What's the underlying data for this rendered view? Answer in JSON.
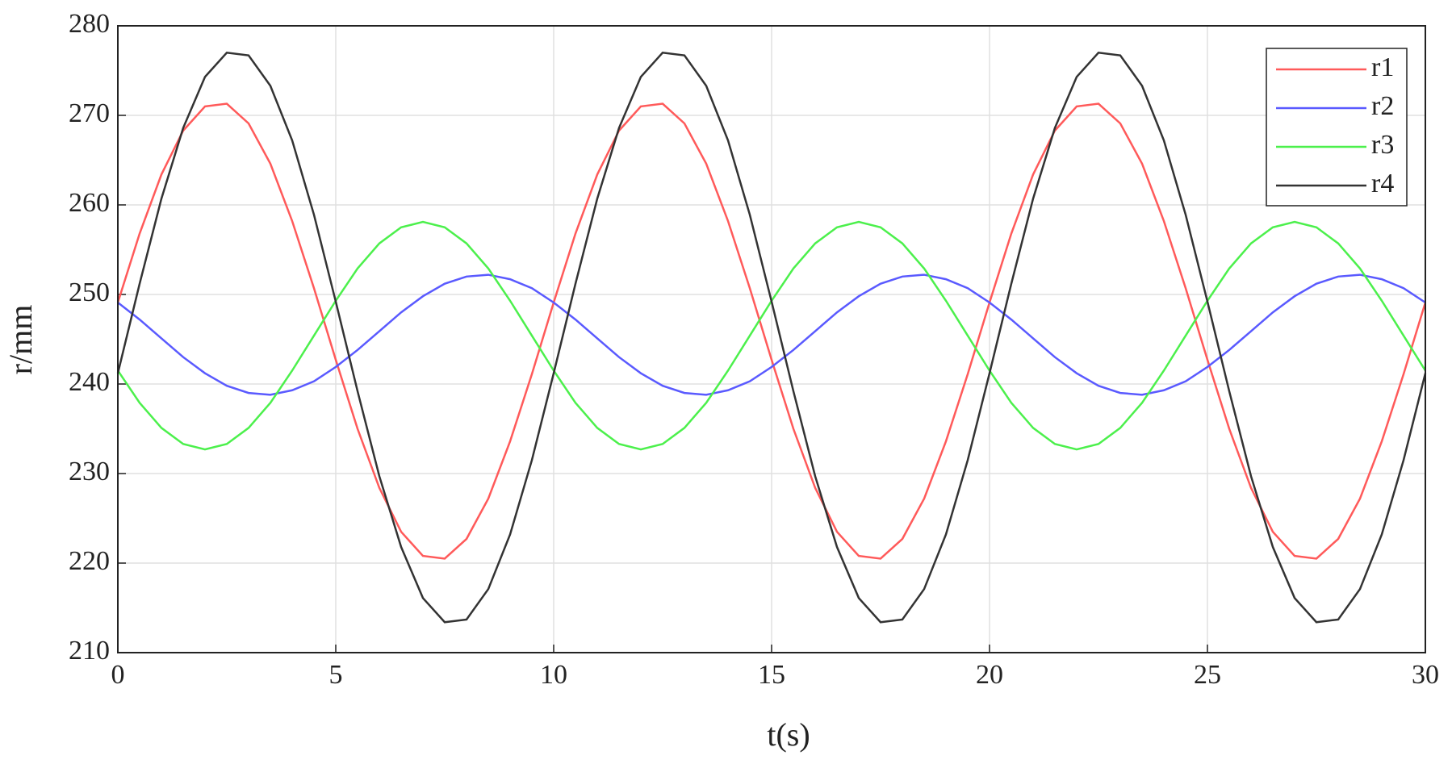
{
  "chart_data": {
    "type": "line",
    "x_label": "t(s)",
    "y_label": "r/mm",
    "x": [
      0,
      0.5,
      1,
      1.5,
      2,
      2.5,
      3,
      3.5,
      4,
      4.5,
      5,
      5.5,
      6,
      6.5,
      7,
      7.5,
      8,
      8.5,
      9,
      9.5,
      10,
      10.5,
      11,
      11.5,
      12,
      12.5,
      13,
      13.5,
      14,
      14.5,
      15,
      15.5,
      16,
      16.5,
      17,
      17.5,
      18,
      18.5,
      19,
      19.5,
      20,
      20.5,
      21,
      21.5,
      22,
      22.5,
      23,
      23.5,
      24,
      24.5,
      25,
      25.5,
      26,
      26.5,
      27,
      27.5,
      28,
      28.5,
      29,
      29.5,
      30
    ],
    "series": [
      {
        "name": "r1",
        "color": "#ff5a5a",
        "values": [
          249.1,
          256.8,
          263.4,
          268.3,
          271.0,
          271.3,
          269.1,
          264.6,
          258.2,
          250.7,
          242.7,
          235.0,
          228.4,
          223.5,
          220.8,
          220.5,
          222.7,
          227.2,
          233.6,
          241.1,
          249.1,
          256.8,
          263.4,
          268.3,
          271.0,
          271.3,
          269.1,
          264.6,
          258.2,
          250.7,
          242.7,
          235.0,
          228.4,
          223.5,
          220.8,
          220.5,
          222.7,
          227.2,
          233.6,
          241.1,
          249.1,
          256.8,
          263.4,
          268.3,
          271.0,
          271.3,
          269.1,
          264.6,
          258.2,
          250.7,
          242.7,
          235.0,
          228.4,
          223.5,
          220.8,
          220.5,
          222.7,
          227.2,
          233.6,
          241.1,
          249.1
        ]
      },
      {
        "name": "r2",
        "color": "#5a5aff",
        "values": [
          249.1,
          247.2,
          245.1,
          243.0,
          241.2,
          239.8,
          239.0,
          238.8,
          239.3,
          240.3,
          241.9,
          243.8,
          245.9,
          248.0,
          249.8,
          251.2,
          252.0,
          252.2,
          251.7,
          250.7,
          249.1,
          247.2,
          245.1,
          243.0,
          241.2,
          239.8,
          239.0,
          238.8,
          239.3,
          240.3,
          241.9,
          243.8,
          245.9,
          248.0,
          249.8,
          251.2,
          252.0,
          252.2,
          251.7,
          250.7,
          249.1,
          247.2,
          245.1,
          243.0,
          241.2,
          239.8,
          239.0,
          238.8,
          239.3,
          240.3,
          241.9,
          243.8,
          245.9,
          248.0,
          249.8,
          251.2,
          252.0,
          252.2,
          251.7,
          250.7,
          249.1
        ]
      },
      {
        "name": "r3",
        "color": "#4cf04c",
        "values": [
          241.5,
          237.9,
          235.1,
          233.3,
          232.7,
          233.3,
          235.1,
          237.9,
          241.5,
          245.4,
          249.3,
          252.9,
          255.7,
          257.5,
          258.1,
          257.5,
          255.7,
          252.9,
          249.3,
          245.4,
          241.5,
          237.9,
          235.1,
          233.3,
          232.7,
          233.3,
          235.1,
          237.9,
          241.5,
          245.4,
          249.3,
          252.9,
          255.7,
          257.5,
          258.1,
          257.5,
          255.7,
          252.9,
          249.3,
          245.4,
          241.5,
          237.9,
          235.1,
          233.3,
          232.7,
          233.3,
          235.1,
          237.9,
          241.5,
          245.4,
          249.3,
          252.9,
          255.7,
          257.5,
          258.1,
          257.5,
          255.7,
          252.9,
          249.3,
          245.4,
          241.5
        ]
      },
      {
        "name": "r4",
        "color": "#333333",
        "values": [
          241.2,
          251.2,
          260.7,
          268.6,
          274.3,
          277.0,
          276.7,
          273.3,
          267.2,
          258.9,
          249.2,
          239.2,
          229.7,
          221.8,
          216.1,
          213.4,
          213.7,
          217.1,
          223.2,
          231.5,
          241.2,
          251.2,
          260.7,
          268.6,
          274.3,
          277.0,
          276.7,
          273.3,
          267.2,
          258.9,
          249.2,
          239.2,
          229.7,
          221.8,
          216.1,
          213.4,
          213.7,
          217.1,
          223.2,
          231.5,
          241.2,
          251.2,
          260.7,
          268.6,
          274.3,
          277.0,
          276.7,
          273.3,
          267.2,
          258.9,
          249.2,
          239.2,
          229.7,
          221.8,
          216.1,
          213.4,
          213.7,
          217.1,
          223.2,
          231.5,
          241.2
        ]
      }
    ],
    "xlim": [
      0,
      30
    ],
    "xticks": [
      0,
      5,
      10,
      15,
      20,
      25,
      30
    ],
    "ylim": [
      210,
      280
    ],
    "yticks": [
      210,
      220,
      230,
      240,
      250,
      260,
      270,
      280
    ],
    "grid": true,
    "legend": "top-right"
  }
}
